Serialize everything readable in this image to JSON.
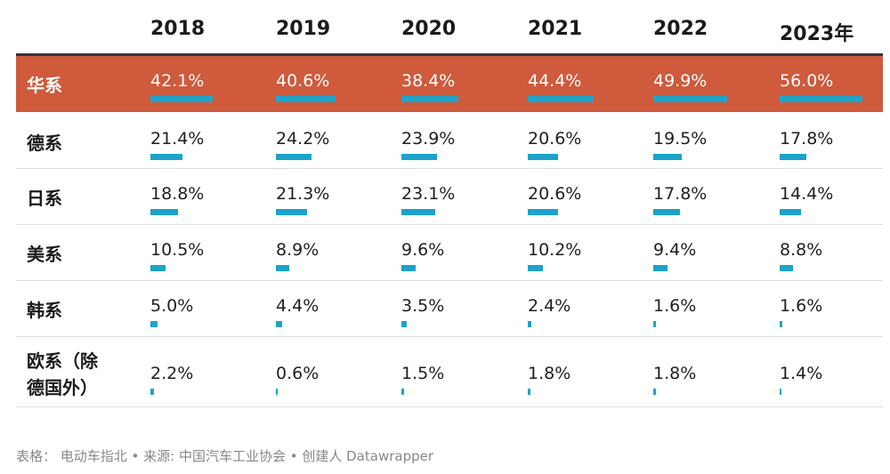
{
  "chart_data": {
    "type": "table",
    "columns": [
      "2018",
      "2019",
      "2020",
      "2021",
      "2022",
      "2023年"
    ],
    "rows": [
      {
        "label": "华系",
        "values": [
          "42.1%",
          "40.6%",
          "38.4%",
          "44.4%",
          "49.9%",
          "56.0%"
        ],
        "numbers": [
          42.1,
          40.6,
          38.4,
          44.4,
          49.9,
          56.0
        ],
        "highlight": true
      },
      {
        "label": "德系",
        "values": [
          "21.4%",
          "24.2%",
          "23.9%",
          "20.6%",
          "19.5%",
          "17.8%"
        ],
        "numbers": [
          21.4,
          24.2,
          23.9,
          20.6,
          19.5,
          17.8
        ],
        "highlight": false
      },
      {
        "label": "日系",
        "values": [
          "18.8%",
          "21.3%",
          "23.1%",
          "20.6%",
          "17.8%",
          "14.4%"
        ],
        "numbers": [
          18.8,
          21.3,
          23.1,
          20.6,
          17.8,
          14.4
        ],
        "highlight": false
      },
      {
        "label": "美系",
        "values": [
          "10.5%",
          "8.9%",
          "9.6%",
          "10.2%",
          "9.4%",
          "8.8%"
        ],
        "numbers": [
          10.5,
          8.9,
          9.6,
          10.2,
          9.4,
          8.8
        ],
        "highlight": false
      },
      {
        "label": "韩系",
        "values": [
          "5.0%",
          "4.4%",
          "3.5%",
          "2.4%",
          "1.6%",
          "1.6%"
        ],
        "numbers": [
          5.0,
          4.4,
          3.5,
          2.4,
          1.6,
          1.6
        ],
        "highlight": false
      },
      {
        "label": "欧系（除德国外）",
        "values": [
          "2.2%",
          "0.6%",
          "1.5%",
          "1.8%",
          "1.8%",
          "1.4%"
        ],
        "numbers": [
          2.2,
          0.6,
          1.5,
          1.8,
          1.8,
          1.4
        ],
        "highlight": false
      }
    ],
    "bar_max": 56.0,
    "colors": {
      "highlight_row": "#cf5a3c",
      "bar": "#1ca3cb",
      "header_rule": "#333333"
    }
  },
  "footer": "表格： 电动车指北 • 来源: 中国汽车工业协会 • 创建人 Datawrapper"
}
